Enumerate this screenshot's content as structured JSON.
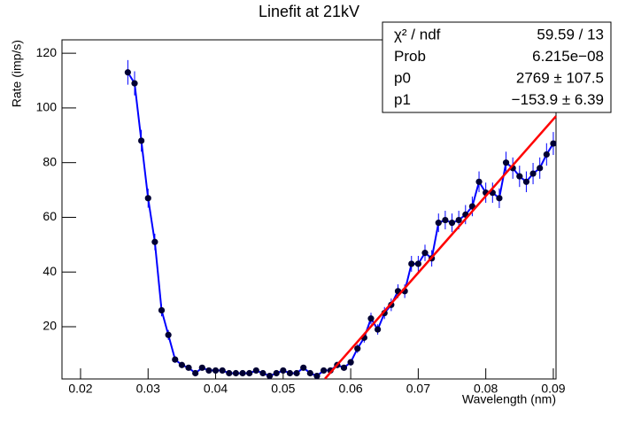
{
  "chart_data": {
    "type": "line",
    "title": "Linefit at 21kV",
    "x_label": "Wavelength (nm)",
    "y_label": "Rate (imp/s)",
    "x": [
      0.027,
      0.028,
      0.029,
      0.03,
      0.031,
      0.032,
      0.033,
      0.034,
      0.035,
      0.036,
      0.037,
      0.038,
      0.039,
      0.04,
      0.041,
      0.042,
      0.043,
      0.044,
      0.045,
      0.046,
      0.047,
      0.048,
      0.049,
      0.05,
      0.051,
      0.052,
      0.053,
      0.054,
      0.055,
      0.056,
      0.057,
      0.058,
      0.059,
      0.06,
      0.061,
      0.062,
      0.063,
      0.064,
      0.065,
      0.066,
      0.067,
      0.068,
      0.069,
      0.07,
      0.071,
      0.072,
      0.073,
      0.074,
      0.075,
      0.076,
      0.077,
      0.078,
      0.079,
      0.08,
      0.081,
      0.082,
      0.083,
      0.084,
      0.085,
      0.086,
      0.087,
      0.088,
      0.089,
      0.09
    ],
    "series": [
      {
        "color": "#0000ff",
        "marker_color": "#000033",
        "values": [
          113,
          109,
          88,
          67,
          51,
          26,
          17,
          8,
          6,
          5,
          3,
          5,
          4,
          4,
          4,
          3,
          3,
          3,
          3,
          4,
          3,
          2,
          3,
          4,
          3,
          3,
          5,
          3,
          2,
          4,
          4,
          6,
          5,
          7,
          12,
          16,
          23,
          19,
          25,
          28,
          33,
          33,
          43,
          43,
          47,
          45,
          58,
          59,
          58,
          59,
          61,
          64,
          73,
          69,
          69,
          67,
          80,
          78,
          75,
          73,
          76,
          78,
          83,
          87
        ],
        "errors": [
          4.5,
          4.4,
          4,
          3.5,
          3,
          2.2,
          1.8,
          1.2,
          1,
          1,
          0.8,
          1,
          0.9,
          0.9,
          0.9,
          0.8,
          0.8,
          0.8,
          0.8,
          0.9,
          0.8,
          0.7,
          0.8,
          0.9,
          0.8,
          0.8,
          1,
          0.8,
          0.7,
          0.9,
          0.9,
          1,
          1,
          1.2,
          1.6,
          1.8,
          2.1,
          1.9,
          2.2,
          2.3,
          2.5,
          2.5,
          2.9,
          2.9,
          3,
          3,
          3.4,
          3.4,
          3.4,
          3.4,
          3.5,
          3.6,
          3.8,
          3.7,
          3.7,
          3.6,
          4,
          3.9,
          3.9,
          3.8,
          3.9,
          3.9,
          4.1,
          4.2
        ]
      }
    ],
    "fit": {
      "color": "#ff0000",
      "x": [
        0.0562,
        0.0904
      ],
      "values": [
        1,
        97
      ]
    },
    "xlim": [
      0.01725,
      0.0904
    ],
    "ylim": [
      0.9,
      124.9
    ],
    "xticks": [
      0.02,
      0.03,
      0.04,
      0.05,
      0.06,
      0.07,
      0.08,
      0.09
    ],
    "yticks": [
      20,
      40,
      60,
      80,
      100,
      120
    ],
    "stats": {
      "rows": [
        [
          "χ² / ndf",
          "59.59 / 13"
        ],
        [
          "Prob",
          "6.215e−08"
        ],
        [
          "p0",
          "2769 ± 107.5"
        ],
        [
          "p1",
          "−153.9 ± 6.39"
        ]
      ]
    }
  }
}
